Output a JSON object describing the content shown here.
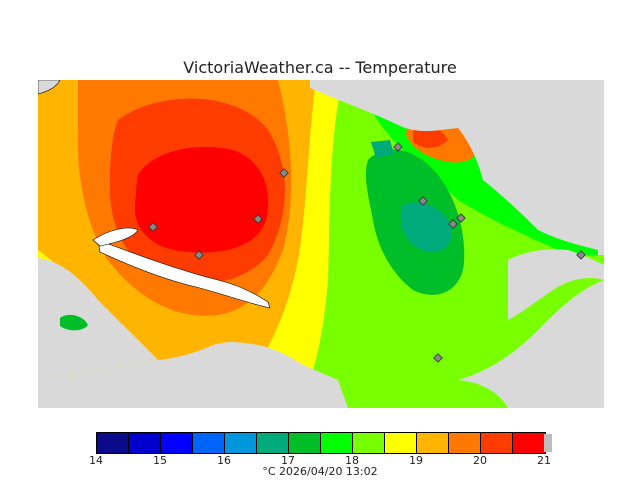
{
  "title": "VictoriaWeather.ca -- Temperature",
  "legend": {
    "ticks": [
      "14",
      "15",
      "16",
      "17",
      "18",
      "19",
      "20",
      "21"
    ],
    "colors": [
      "#0a0a8a",
      "#0000cd",
      "#0000ff",
      "#0064ff",
      "#0096dc",
      "#00aa7a",
      "#00be28",
      "#00ff00",
      "#78ff00",
      "#ffff00",
      "#ffb400",
      "#ff7800",
      "#ff3c00",
      "#ff0000"
    ]
  },
  "footer": "°C  2026/04/20 13:02",
  "colors": {
    "background_land_missing": "#d9d9d9",
    "sea": "#ffffff"
  }
}
